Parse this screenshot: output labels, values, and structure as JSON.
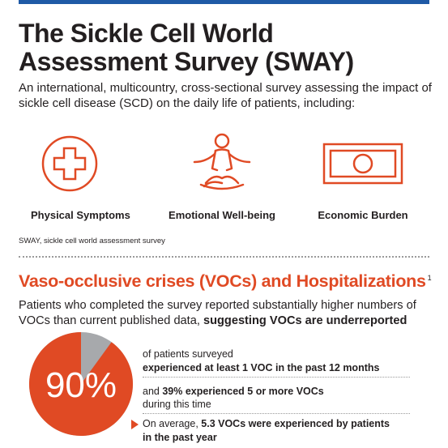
{
  "header": {
    "title_line1": "The Sickle Cell World",
    "title_line2": "Assessment Survey (SWAY)",
    "intro": "An international, multicountry, cross-sectional survey assessing the impact of sickle cell disease (SCD) on the daily life of patients, including:"
  },
  "impacts": [
    {
      "label": "Physical Symptoms",
      "icon": "medical-cross-icon"
    },
    {
      "label": "Emotional Well-being",
      "icon": "meditation-icon"
    },
    {
      "label": "Economic Burden",
      "icon": "banknote-icon"
    }
  ],
  "footnote": "SWAY, sickle cell world assessment survey",
  "voc_section": {
    "title": "Vaso-occlusive crises (VOCs) and Hospitalizations",
    "superscript": "1",
    "lead_text": "Patients who completed the survey reported substantially higher numbers of VOCs than current published data, ",
    "lead_bold": "suggesting VOCs are underreported",
    "pie_value": "90%",
    "pie_fraction": 0.9,
    "stat1_line1": "of patients surveyed",
    "stat1_line2": "experienced at least 1 VOC in the past 12 months",
    "stat2_prefix": "and ",
    "stat2_bold": "39% experienced 5 or more VOCs",
    "stat2_line2": "during this time",
    "stat3_prefix": "On average, ",
    "stat3_bold1": "5.3 VOCs were experienced by patients",
    "stat3_bold2": "in the past year"
  },
  "colors": {
    "accent": "#e04a24",
    "blue_bar": "#1f5aa6",
    "pie_remainder": "#a7a9ac",
    "text": "#231f20"
  }
}
